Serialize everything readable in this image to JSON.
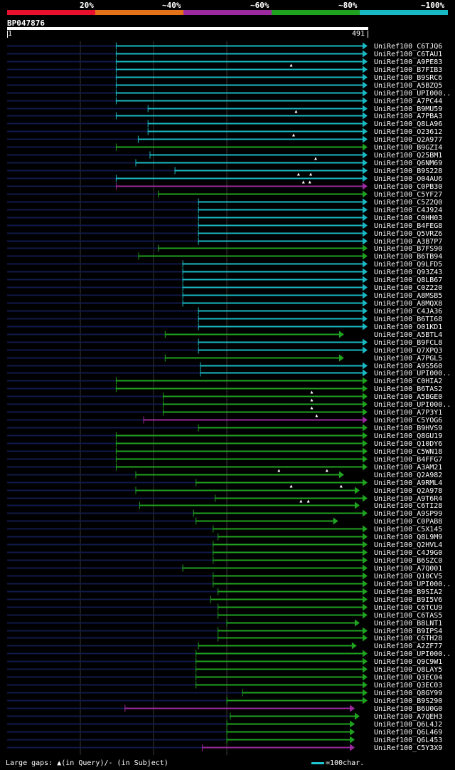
{
  "legend": {
    "labels": [
      "20%",
      "~40%",
      "~60%",
      "~80%",
      "~100%"
    ],
    "colors": [
      "#e8102c",
      "#e47218",
      "#9a2a9e",
      "#1fa21f",
      "#19b9c3"
    ]
  },
  "query": {
    "id": "BP047876",
    "start": "1",
    "end": "491",
    "length": 491
  },
  "footer": {
    "gaps_text": "Large gaps: ▲(in Query)/- (in Subject)",
    "scale_text": "=100char."
  },
  "chart_data": {
    "type": "alignment-overview",
    "title": "BP047876",
    "x_range": [
      1,
      491
    ],
    "grid_positions": [
      150,
      300,
      450
    ],
    "color_key": {
      "20%": "#e8102c",
      "~40%": "#e47218",
      "~60%": "#9a2a9e",
      "~80%": "#1fa21f",
      "~100%": "#19b9c3"
    },
    "hits": [
      {
        "name": "UniRef100_C6TJQ6",
        "start": 222,
        "end": 736,
        "identity": "~100%",
        "marks": []
      },
      {
        "name": "UniRef100_C6TAU1",
        "start": 222,
        "end": 736,
        "identity": "~100%",
        "marks": []
      },
      {
        "name": "UniRef100_A9PE83",
        "start": 222,
        "end": 736,
        "identity": "~100%",
        "marks": []
      },
      {
        "name": "UniRef100_B7FIB3",
        "start": 222,
        "end": 736,
        "identity": "~100%",
        "marks": [
          580
        ]
      },
      {
        "name": "UniRef100_B9SRC6",
        "start": 222,
        "end": 736,
        "identity": "~100%",
        "marks": []
      },
      {
        "name": "UniRef100_A5BZQ5",
        "start": 222,
        "end": 736,
        "identity": "~100%",
        "marks": []
      },
      {
        "name": "UniRef100_UPI000..",
        "start": 222,
        "end": 736,
        "identity": "~100%",
        "marks": []
      },
      {
        "name": "UniRef100_A7PC44",
        "start": 222,
        "end": 736,
        "identity": "~100%",
        "marks": []
      },
      {
        "name": "UniRef100_B9MU59",
        "start": 287,
        "end": 736,
        "identity": "~100%",
        "marks": []
      },
      {
        "name": "UniRef100_A7PBA3",
        "start": 222,
        "end": 736,
        "identity": "~100%",
        "marks": [
          590
        ]
      },
      {
        "name": "UniRef100_Q8LA96",
        "start": 287,
        "end": 736,
        "identity": "~100%",
        "marks": []
      },
      {
        "name": "UniRef100_O23612",
        "start": 287,
        "end": 736,
        "identity": "~100%",
        "marks": []
      },
      {
        "name": "UniRef100_Q2A977",
        "start": 267,
        "end": 736,
        "identity": "~100%",
        "marks": [
          585
        ]
      },
      {
        "name": "UniRef100_B9GZI4",
        "start": 222,
        "end": 736,
        "identity": "~80%",
        "marks": []
      },
      {
        "name": "UniRef100_Q25BM1",
        "start": 291,
        "end": 736,
        "identity": "~100%",
        "marks": []
      },
      {
        "name": "UniRef100_Q6NM69",
        "start": 262,
        "end": 736,
        "identity": "~100%",
        "marks": [
          630
        ]
      },
      {
        "name": "UniRef100_B9S228",
        "start": 342,
        "end": 736,
        "identity": "~100%",
        "marks": []
      },
      {
        "name": "UniRef100_O04AU6",
        "start": 222,
        "end": 736,
        "identity": "~100%",
        "marks": [
          595,
          620
        ]
      },
      {
        "name": "UniRef100_C0PB30",
        "start": 222,
        "end": 736,
        "identity": "~60%",
        "marks": [
          605,
          618
        ]
      },
      {
        "name": "UniRef100_C5YF27",
        "start": 308,
        "end": 736,
        "identity": "~80%",
        "marks": []
      },
      {
        "name": "UniRef100_C5Z2Q0",
        "start": 390,
        "end": 736,
        "identity": "~100%",
        "marks": []
      },
      {
        "name": "UniRef100_C4J924",
        "start": 390,
        "end": 736,
        "identity": "~100%",
        "marks": []
      },
      {
        "name": "UniRef100_C0HH03",
        "start": 390,
        "end": 736,
        "identity": "~100%",
        "marks": []
      },
      {
        "name": "UniRef100_B4FEG8",
        "start": 390,
        "end": 736,
        "identity": "~100%",
        "marks": []
      },
      {
        "name": "UniRef100_Q5VRZ6",
        "start": 390,
        "end": 736,
        "identity": "~100%",
        "marks": []
      },
      {
        "name": "UniRef100_A3B7P7",
        "start": 390,
        "end": 736,
        "identity": "~100%",
        "marks": []
      },
      {
        "name": "UniRef100_B7FS90",
        "start": 308,
        "end": 736,
        "identity": "~80%",
        "marks": []
      },
      {
        "name": "UniRef100_B6TB94",
        "start": 268,
        "end": 736,
        "identity": "~80%",
        "marks": []
      },
      {
        "name": "UniRef100_Q9LFD5",
        "start": 358,
        "end": 736,
        "identity": "~100%",
        "marks": []
      },
      {
        "name": "UniRef100_Q93Z43",
        "start": 358,
        "end": 736,
        "identity": "~100%",
        "marks": []
      },
      {
        "name": "UniRef100_Q8LB67",
        "start": 358,
        "end": 736,
        "identity": "~100%",
        "marks": []
      },
      {
        "name": "UniRef100_C0Z220",
        "start": 358,
        "end": 736,
        "identity": "~100%",
        "marks": []
      },
      {
        "name": "UniRef100_A8MSB5",
        "start": 358,
        "end": 736,
        "identity": "~100%",
        "marks": []
      },
      {
        "name": "UniRef100_A8MQX8",
        "start": 358,
        "end": 736,
        "identity": "~100%",
        "marks": []
      },
      {
        "name": "UniRef100_C4JA36",
        "start": 390,
        "end": 736,
        "identity": "~100%",
        "marks": []
      },
      {
        "name": "UniRef100_B6TI68",
        "start": 390,
        "end": 736,
        "identity": "~100%",
        "marks": []
      },
      {
        "name": "UniRef100_O01KD1",
        "start": 390,
        "end": 736,
        "identity": "~100%",
        "marks": []
      },
      {
        "name": "UniRef100_A5BTL4",
        "start": 322,
        "end": 688,
        "identity": "~80%",
        "marks": []
      },
      {
        "name": "UniRef100_B9FCL8",
        "start": 390,
        "end": 736,
        "identity": "~100%",
        "marks": []
      },
      {
        "name": "UniRef100_Q7XPQ3",
        "start": 390,
        "end": 736,
        "identity": "~100%",
        "marks": []
      },
      {
        "name": "UniRef100_A7PGL5",
        "start": 322,
        "end": 688,
        "identity": "~80%",
        "marks": []
      },
      {
        "name": "UniRef100_A9S560",
        "start": 394,
        "end": 736,
        "identity": "~100%",
        "marks": []
      },
      {
        "name": "UniRef100_UPI000..",
        "start": 394,
        "end": 736,
        "identity": "~100%",
        "marks": []
      },
      {
        "name": "UniRef100_C0HIA2",
        "start": 222,
        "end": 736,
        "identity": "~80%",
        "marks": []
      },
      {
        "name": "UniRef100_B6TAS2",
        "start": 222,
        "end": 736,
        "identity": "~80%",
        "marks": []
      },
      {
        "name": "UniRef100_A5BGE0",
        "start": 318,
        "end": 736,
        "identity": "~80%",
        "marks": [
          622
        ]
      },
      {
        "name": "UniRef100_UPI000..",
        "start": 318,
        "end": 736,
        "identity": "~80%",
        "marks": [
          622
        ]
      },
      {
        "name": "UniRef100_A7P3Y1",
        "start": 318,
        "end": 736,
        "identity": "~80%",
        "marks": [
          622
        ]
      },
      {
        "name": "UniRef100_C5YOG6",
        "start": 278,
        "end": 736,
        "identity": "~60%",
        "marks": [
          632
        ]
      },
      {
        "name": "UniRef100_B9HVS9",
        "start": 390,
        "end": 736,
        "identity": "~80%",
        "marks": []
      },
      {
        "name": "UniRef100_Q8GU19",
        "start": 222,
        "end": 736,
        "identity": "~80%",
        "marks": []
      },
      {
        "name": "UniRef100_Q10DY6",
        "start": 222,
        "end": 736,
        "identity": "~80%",
        "marks": []
      },
      {
        "name": "UniRef100_C5WN18",
        "start": 222,
        "end": 736,
        "identity": "~80%",
        "marks": []
      },
      {
        "name": "UniRef100_B4FFG7",
        "start": 222,
        "end": 736,
        "identity": "~80%",
        "marks": []
      },
      {
        "name": "UniRef100_A3AM21",
        "start": 222,
        "end": 736,
        "identity": "~80%",
        "marks": []
      },
      {
        "name": "UniRef100_Q2A982",
        "start": 262,
        "end": 688,
        "identity": "~80%",
        "marks": [
          555,
          653
        ]
      },
      {
        "name": "UniRef100_A9RML4",
        "start": 385,
        "end": 736,
        "identity": "~80%",
        "marks": []
      },
      {
        "name": "UniRef100_Q2A978",
        "start": 262,
        "end": 720,
        "identity": "~80%",
        "marks": [
          580,
          682
        ]
      },
      {
        "name": "UniRef100_A9T6R4",
        "start": 424,
        "end": 736,
        "identity": "~80%",
        "marks": []
      },
      {
        "name": "UniRef100_C6TI28",
        "start": 270,
        "end": 720,
        "identity": "~80%",
        "marks": [
          600,
          615
        ]
      },
      {
        "name": "UniRef100_A9SP99",
        "start": 380,
        "end": 736,
        "identity": "~80%",
        "marks": []
      },
      {
        "name": "UniRef100_C0PAB8",
        "start": 385,
        "end": 676,
        "identity": "~80%",
        "marks": []
      },
      {
        "name": "UniRef100_C5X145",
        "start": 420,
        "end": 736,
        "identity": "~80%",
        "marks": []
      },
      {
        "name": "UniRef100_Q8L9M9",
        "start": 430,
        "end": 736,
        "identity": "~80%",
        "marks": []
      },
      {
        "name": "UniRef100_Q2HVL4",
        "start": 420,
        "end": 736,
        "identity": "~80%",
        "marks": []
      },
      {
        "name": "UniRef100_C4J9G0",
        "start": 420,
        "end": 736,
        "identity": "~80%",
        "marks": []
      },
      {
        "name": "UniRef100_B6SZC0",
        "start": 420,
        "end": 736,
        "identity": "~80%",
        "marks": []
      },
      {
        "name": "UniRef100_A7Q001",
        "start": 358,
        "end": 736,
        "identity": "~80%",
        "marks": []
      },
      {
        "name": "UniRef100_Q10CV5",
        "start": 420,
        "end": 736,
        "identity": "~80%",
        "marks": []
      },
      {
        "name": "UniRef100_UPI000..",
        "start": 420,
        "end": 736,
        "identity": "~80%",
        "marks": []
      },
      {
        "name": "UniRef100_B9SIA2",
        "start": 430,
        "end": 736,
        "identity": "~80%",
        "marks": []
      },
      {
        "name": "UniRef100_B9I5V6",
        "start": 415,
        "end": 736,
        "identity": "~80%",
        "marks": []
      },
      {
        "name": "UniRef100_C6TCU9",
        "start": 430,
        "end": 736,
        "identity": "~80%",
        "marks": []
      },
      {
        "name": "UniRef100_C6TAS5",
        "start": 430,
        "end": 736,
        "identity": "~80%",
        "marks": []
      },
      {
        "name": "UniRef100_B8LNT1",
        "start": 448,
        "end": 720,
        "identity": "~80%",
        "marks": []
      },
      {
        "name": "UniRef100_B9IPS4",
        "start": 430,
        "end": 736,
        "identity": "~80%",
        "marks": []
      },
      {
        "name": "UniRef100_C6TH28",
        "start": 430,
        "end": 736,
        "identity": "~80%",
        "marks": []
      },
      {
        "name": "UniRef100_A2ZF77",
        "start": 390,
        "end": 714,
        "identity": "~80%",
        "marks": []
      },
      {
        "name": "UniRef100_UPI000..",
        "start": 385,
        "end": 736,
        "identity": "~80%",
        "marks": []
      },
      {
        "name": "UniRef100_Q9C9W1",
        "start": 385,
        "end": 736,
        "identity": "~80%",
        "marks": []
      },
      {
        "name": "UniRef100_Q8LAY5",
        "start": 385,
        "end": 736,
        "identity": "~80%",
        "marks": []
      },
      {
        "name": "UniRef100_Q3EC04",
        "start": 385,
        "end": 736,
        "identity": "~80%",
        "marks": []
      },
      {
        "name": "UniRef100_Q3EC03",
        "start": 385,
        "end": 736,
        "identity": "~80%",
        "marks": []
      },
      {
        "name": "UniRef100_Q8GY99",
        "start": 480,
        "end": 736,
        "identity": "~80%",
        "marks": []
      },
      {
        "name": "UniRef100_B9S290",
        "start": 448,
        "end": 736,
        "identity": "~80%",
        "marks": []
      },
      {
        "name": "UniRef100_B6U0G0",
        "start": 240,
        "end": 710,
        "identity": "~60%",
        "marks": []
      },
      {
        "name": "UniRef100_A7QEH3",
        "start": 455,
        "end": 720,
        "identity": "~80%",
        "marks": []
      },
      {
        "name": "UniRef100_Q6L4J2",
        "start": 448,
        "end": 710,
        "identity": "~80%",
        "marks": []
      },
      {
        "name": "UniRef100_Q6L469",
        "start": 448,
        "end": 710,
        "identity": "~80%",
        "marks": []
      },
      {
        "name": "UniRef100_Q6L453",
        "start": 448,
        "end": 710,
        "identity": "~80%",
        "marks": []
      },
      {
        "name": "UniRef100_C5Y3X9",
        "start": 398,
        "end": 710,
        "identity": "~60%",
        "marks": []
      }
    ]
  }
}
